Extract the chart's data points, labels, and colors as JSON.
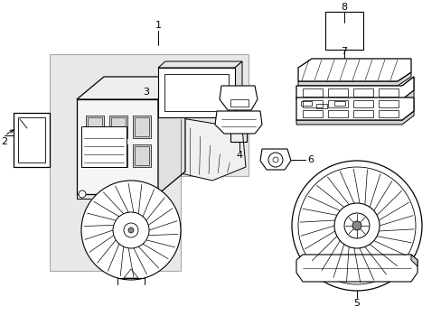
{
  "bg_color": "#ffffff",
  "line_color": "#000000",
  "gray_bg": "#e0e0e0",
  "figsize": [
    4.89,
    3.6
  ],
  "dpi": 100,
  "label_fs": 8
}
